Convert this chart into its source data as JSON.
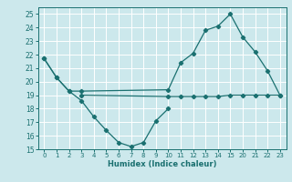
{
  "bg_color": "#cce8ec",
  "grid_color": "#ffffff",
  "line_color": "#1a7070",
  "marker_color": "#1a7070",
  "line1_x": [
    0,
    1,
    2,
    3,
    10,
    11,
    12,
    13,
    14,
    15,
    20,
    21,
    22,
    23
  ],
  "line1_y": [
    21.7,
    20.3,
    19.3,
    19.3,
    19.4,
    21.4,
    22.1,
    23.8,
    24.1,
    25.0,
    23.3,
    22.2,
    20.8,
    19.0
  ],
  "line2_x": [
    0,
    1,
    2,
    3,
    4,
    5,
    6,
    7,
    8,
    9,
    10
  ],
  "line2_y": [
    21.7,
    20.3,
    19.3,
    18.6,
    17.4,
    16.4,
    15.5,
    15.2,
    15.5,
    17.1,
    18.0
  ],
  "line3_x": [
    3,
    10,
    11,
    12,
    13,
    14,
    15,
    20,
    21,
    22,
    23
  ],
  "line3_y": [
    19.0,
    18.9,
    18.9,
    18.9,
    18.9,
    18.9,
    19.0,
    19.0,
    19.0,
    19.0,
    19.0
  ],
  "xtick_positions": [
    0,
    1,
    2,
    3,
    4,
    5,
    6,
    7,
    8,
    9,
    10,
    11,
    12,
    13,
    14,
    15,
    20,
    21,
    22,
    23
  ],
  "xtick_labels": [
    "0",
    "1",
    "2",
    "3",
    "4",
    "5",
    "6",
    "7",
    "8",
    "9",
    "10",
    "11",
    "12",
    "13",
    "14",
    "15",
    "20",
    "21",
    "22",
    "23"
  ],
  "yticks": [
    15,
    16,
    17,
    18,
    19,
    20,
    21,
    22,
    23,
    24,
    25
  ],
  "xlim": [
    -0.5,
    23.5
  ],
  "ylim": [
    15,
    25.5
  ],
  "xlabel": "Humidex (Indice chaleur)",
  "lw": 0.9,
  "ms": 2.2
}
